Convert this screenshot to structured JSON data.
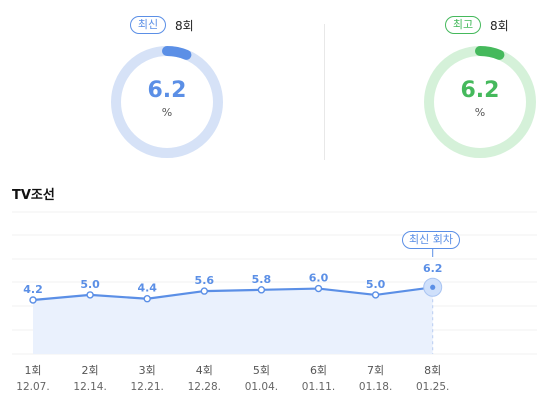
{
  "latest": {
    "badge": "최신",
    "episode": "8회",
    "value": "6.2",
    "unit": "%",
    "progress": 0.062,
    "color": "#5b8fe6",
    "track": "#d6e2f7"
  },
  "best": {
    "badge": "최고",
    "episode": "8회",
    "value": "6.2",
    "unit": "%",
    "progress": 0.062,
    "color": "#45b95c",
    "track": "#d5f1d9"
  },
  "section_title": "TV조선",
  "callout": "최신 회차",
  "chart_data": {
    "type": "line",
    "categories": [
      "1회",
      "2회",
      "3회",
      "4회",
      "5회",
      "6회",
      "7회",
      "8회"
    ],
    "dates": [
      "12.07.",
      "12.14.",
      "12.21.",
      "12.28.",
      "01.04.",
      "01.11.",
      "01.18.",
      "01.25."
    ],
    "values": [
      4.2,
      5.0,
      4.4,
      5.6,
      5.8,
      6.0,
      5.0,
      6.2
    ],
    "value_labels": [
      "4.2",
      "5.0",
      "4.4",
      "5.6",
      "5.8",
      "6.0",
      "5.0",
      "6.2"
    ],
    "highlight_index": 7,
    "line_color": "#5b8fe6",
    "fill_color": "#eaf1fd",
    "grid": true
  }
}
